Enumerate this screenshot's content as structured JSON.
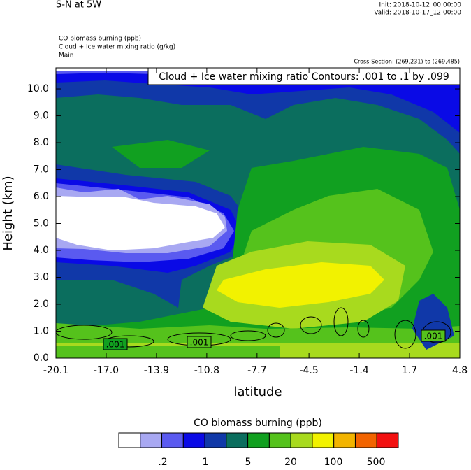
{
  "chart_data": {
    "type": "contour",
    "title": "S-N at 5W",
    "init": "Init: 2018-10-12_00:00:00",
    "valid": "Valid: 2018-10-17_12:00:00",
    "fields": [
      "CO biomass burning   (ppb)",
      "Cloud + Ice water mixing ratio   (g/kg)",
      "Main"
    ],
    "cross_section": "Cross-Section: (269,231) to (269,485)",
    "contour_info": "Cloud + Ice water mixing ratio Contours: .001 to .1 by .099",
    "contour_labels": [
      ".001",
      ".001",
      ".001"
    ],
    "x_label": "latitude",
    "y_label": "Height (km)",
    "xlim": [
      -20.1,
      4.8
    ],
    "xticks": [
      -20.1,
      {
        "value": -17.0,
        "label": "-17.0"
      },
      -13.9,
      -10.8,
      -7.7,
      -4.5,
      -1.4,
      1.7,
      4.8
    ],
    "ylim": [
      0,
      10.78
    ],
    "yticks": [
      {
        "value": 0,
        "label": "0.0"
      },
      {
        "value": 1,
        "label": "1.0"
      },
      {
        "value": 2,
        "label": "2.0"
      },
      {
        "value": 3,
        "label": "3.0"
      },
      {
        "value": 4,
        "label": "4.0"
      },
      {
        "value": 5,
        "label": "5.0"
      },
      {
        "value": 6,
        "label": "6.0"
      },
      {
        "value": 7,
        "label": "7.0"
      },
      {
        "value": 8,
        "label": "8.0"
      },
      {
        "value": 9,
        "label": "9.0"
      },
      {
        "value": 10,
        "label": "10.0"
      }
    ],
    "colorbar_title": "CO biomass burning  (ppb)",
    "colorbar_colors": [
      "#ffffff",
      "#a8a8f2",
      "#5a5af0",
      "#0a0ae6",
      "#1038a8",
      "#0b6e5e",
      "#11a020",
      "#55c21c",
      "#a8da1e",
      "#f2f200",
      "#f2b400",
      "#f26400",
      "#f21010"
    ],
    "colorbar_labels": [
      ".2",
      "1",
      "5",
      "20",
      "100",
      "500"
    ]
  }
}
